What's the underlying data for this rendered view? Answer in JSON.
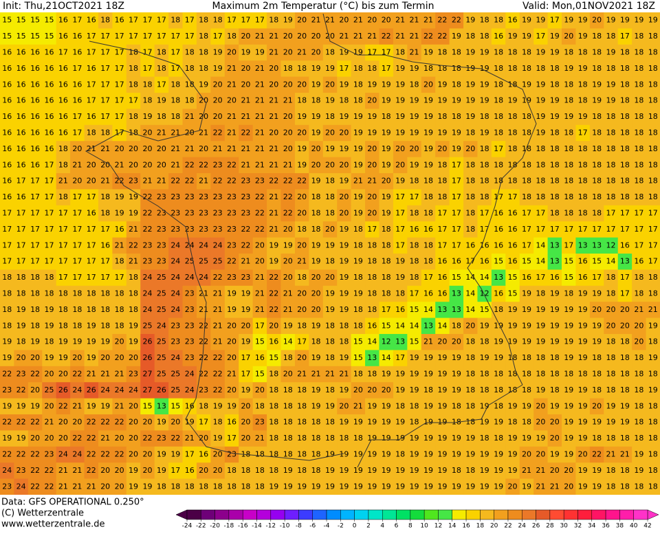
{
  "header": {
    "init": "Init: Thu,21OCT2021 18Z",
    "title": "Maximum 2m Temperatur (°C) bis zum Termin",
    "valid": "Valid: Mon,01NOV2021 18Z"
  },
  "footer": {
    "data": "Data: GFS OPERATIONAL 0.250°",
    "copyright": "(C) Wetterzentrale",
    "url": "www.wetterzentrale.de"
  },
  "map": {
    "grid": [
      [
        15,
        15,
        15,
        15,
        16,
        17,
        16,
        18,
        16,
        17,
        17,
        17,
        18,
        17,
        18,
        18,
        17,
        17,
        17,
        18,
        19,
        20,
        21,
        21,
        20,
        21,
        20,
        20,
        21,
        21,
        21,
        22,
        22,
        19,
        18,
        18,
        16,
        19,
        19,
        17,
        19,
        19,
        20,
        19,
        19,
        19,
        19
      ],
      [
        15,
        15,
        15,
        15,
        16,
        16,
        17,
        17,
        17,
        17,
        17,
        17,
        17,
        17,
        18,
        17,
        18,
        20,
        21,
        21,
        20,
        20,
        20,
        20,
        21,
        21,
        21,
        22,
        21,
        21,
        22,
        22,
        19,
        18,
        18,
        16,
        19,
        19,
        17,
        19,
        20,
        19,
        18,
        18,
        17,
        18,
        18
      ],
      [
        16,
        16,
        16,
        16,
        17,
        16,
        17,
        17,
        17,
        18,
        17,
        18,
        17,
        18,
        18,
        19,
        20,
        19,
        19,
        21,
        20,
        21,
        20,
        18,
        19,
        19,
        17,
        17,
        18,
        21,
        19,
        18,
        18,
        19,
        19,
        18,
        18,
        18,
        19,
        19,
        18,
        18,
        18,
        19,
        18,
        18,
        18
      ],
      [
        16,
        16,
        16,
        16,
        16,
        17,
        16,
        17,
        17,
        18,
        17,
        18,
        17,
        18,
        18,
        19,
        21,
        20,
        21,
        20,
        18,
        18,
        19,
        19,
        17,
        18,
        18,
        17,
        19,
        19,
        18,
        18,
        18,
        19,
        19,
        18,
        18,
        18,
        18,
        18,
        19,
        19,
        18,
        18,
        18,
        18,
        18
      ],
      [
        16,
        16,
        16,
        16,
        16,
        16,
        17,
        17,
        17,
        18,
        18,
        17,
        18,
        18,
        19,
        20,
        21,
        20,
        21,
        20,
        20,
        20,
        19,
        20,
        19,
        18,
        19,
        19,
        19,
        18,
        20,
        19,
        18,
        19,
        19,
        18,
        18,
        19,
        19,
        18,
        18,
        18,
        19,
        19,
        18,
        18,
        18
      ],
      [
        16,
        16,
        16,
        16,
        16,
        16,
        17,
        17,
        17,
        17,
        18,
        19,
        18,
        18,
        20,
        20,
        20,
        21,
        21,
        21,
        21,
        18,
        18,
        19,
        18,
        18,
        20,
        19,
        19,
        19,
        19,
        19,
        19,
        19,
        19,
        18,
        19,
        19,
        19,
        19,
        18,
        18,
        19,
        19,
        18,
        18,
        18
      ],
      [
        16,
        16,
        16,
        16,
        16,
        17,
        16,
        17,
        17,
        18,
        19,
        18,
        18,
        21,
        20,
        20,
        21,
        21,
        21,
        21,
        20,
        19,
        19,
        18,
        19,
        19,
        19,
        18,
        19,
        19,
        19,
        18,
        18,
        19,
        18,
        18,
        18,
        18,
        19,
        19,
        19,
        19,
        18,
        18,
        18,
        18,
        18
      ],
      [
        16,
        16,
        16,
        16,
        16,
        17,
        18,
        18,
        17,
        18,
        20,
        21,
        21,
        20,
        21,
        22,
        21,
        22,
        21,
        20,
        20,
        20,
        19,
        20,
        20,
        19,
        19,
        19,
        19,
        19,
        19,
        19,
        19,
        18,
        19,
        18,
        18,
        18,
        19,
        18,
        18,
        17,
        18,
        18,
        18,
        18,
        18
      ],
      [
        16,
        16,
        16,
        16,
        18,
        20,
        21,
        21,
        20,
        20,
        20,
        20,
        21,
        21,
        20,
        21,
        21,
        21,
        21,
        21,
        20,
        19,
        20,
        19,
        19,
        19,
        20,
        19,
        20,
        20,
        19,
        20,
        19,
        20,
        18,
        17,
        18,
        18,
        18,
        18,
        18,
        18,
        18,
        18,
        18,
        18,
        18
      ],
      [
        16,
        16,
        16,
        17,
        18,
        21,
        20,
        20,
        21,
        20,
        20,
        20,
        21,
        22,
        22,
        23,
        22,
        21,
        21,
        21,
        21,
        19,
        20,
        20,
        20,
        19,
        20,
        19,
        20,
        19,
        19,
        18,
        17,
        18,
        18,
        18,
        18,
        18,
        18,
        18,
        18,
        18,
        18,
        18,
        18,
        18,
        18
      ],
      [
        16,
        17,
        17,
        17,
        21,
        20,
        20,
        21,
        22,
        23,
        21,
        21,
        22,
        22,
        21,
        22,
        22,
        23,
        23,
        22,
        22,
        22,
        19,
        18,
        19,
        21,
        21,
        20,
        19,
        18,
        18,
        18,
        17,
        18,
        18,
        18,
        18,
        18,
        18,
        18,
        18,
        18,
        18,
        18,
        18,
        18,
        18
      ],
      [
        16,
        16,
        17,
        17,
        18,
        17,
        17,
        18,
        19,
        19,
        22,
        23,
        23,
        23,
        23,
        23,
        23,
        23,
        22,
        21,
        22,
        20,
        18,
        18,
        20,
        19,
        20,
        19,
        17,
        17,
        18,
        18,
        17,
        18,
        18,
        17,
        17,
        18,
        18,
        18,
        18,
        18,
        18,
        18,
        18,
        18,
        18
      ],
      [
        17,
        17,
        17,
        17,
        17,
        17,
        16,
        18,
        19,
        19,
        22,
        23,
        23,
        23,
        23,
        23,
        23,
        23,
        22,
        21,
        22,
        20,
        18,
        18,
        20,
        19,
        20,
        19,
        17,
        18,
        18,
        17,
        17,
        18,
        17,
        16,
        16,
        17,
        17,
        18,
        18,
        18,
        18,
        17,
        17,
        17,
        17
      ],
      [
        17,
        17,
        17,
        17,
        17,
        17,
        17,
        17,
        16,
        21,
        22,
        23,
        23,
        23,
        23,
        23,
        23,
        22,
        22,
        21,
        20,
        18,
        18,
        20,
        19,
        18,
        17,
        18,
        17,
        16,
        16,
        17,
        17,
        18,
        17,
        16,
        16,
        17,
        17,
        17,
        17,
        17,
        17,
        17,
        17,
        17,
        17
      ],
      [
        17,
        17,
        17,
        17,
        17,
        17,
        17,
        16,
        21,
        22,
        23,
        23,
        24,
        24,
        24,
        24,
        23,
        22,
        20,
        19,
        19,
        20,
        19,
        19,
        19,
        18,
        18,
        18,
        17,
        18,
        18,
        17,
        17,
        16,
        16,
        16,
        16,
        17,
        14,
        13,
        17,
        13,
        13,
        12,
        16,
        17,
        17
      ],
      [
        17,
        17,
        17,
        17,
        17,
        17,
        17,
        17,
        18,
        21,
        23,
        23,
        24,
        25,
        25,
        25,
        22,
        21,
        20,
        19,
        20,
        21,
        19,
        18,
        19,
        19,
        18,
        18,
        19,
        18,
        18,
        16,
        16,
        17,
        16,
        15,
        16,
        15,
        14,
        13,
        15,
        16,
        15,
        14,
        13,
        16,
        17
      ],
      [
        18,
        18,
        18,
        18,
        17,
        17,
        17,
        17,
        17,
        18,
        24,
        25,
        24,
        24,
        24,
        22,
        23,
        23,
        21,
        22,
        20,
        18,
        20,
        20,
        19,
        18,
        18,
        18,
        19,
        18,
        17,
        16,
        15,
        14,
        14,
        13,
        15,
        16,
        17,
        16,
        15,
        16,
        17,
        18,
        17,
        18,
        18
      ],
      [
        18,
        18,
        18,
        18,
        18,
        18,
        18,
        18,
        18,
        18,
        24,
        25,
        24,
        23,
        21,
        21,
        19,
        19,
        21,
        22,
        21,
        20,
        20,
        19,
        19,
        19,
        18,
        18,
        18,
        17,
        16,
        16,
        13,
        14,
        12,
        16,
        15,
        19,
        18,
        19,
        18,
        19,
        19,
        18,
        17,
        18,
        18
      ],
      [
        18,
        19,
        18,
        19,
        18,
        18,
        18,
        18,
        18,
        18,
        24,
        25,
        24,
        23,
        21,
        21,
        19,
        19,
        21,
        22,
        21,
        20,
        20,
        19,
        19,
        18,
        18,
        17,
        16,
        15,
        14,
        13,
        13,
        14,
        15,
        18,
        19,
        19,
        19,
        19,
        19,
        19,
        20,
        20,
        20,
        21,
        21
      ],
      [
        18,
        19,
        18,
        19,
        18,
        18,
        19,
        18,
        18,
        19,
        25,
        24,
        23,
        23,
        22,
        21,
        20,
        20,
        17,
        20,
        19,
        18,
        19,
        18,
        18,
        18,
        16,
        15,
        14,
        14,
        13,
        14,
        18,
        20,
        19,
        19,
        19,
        19,
        19,
        19,
        19,
        19,
        19,
        20,
        20,
        20,
        19
      ],
      [
        19,
        18,
        19,
        18,
        19,
        19,
        19,
        19,
        20,
        19,
        26,
        25,
        23,
        23,
        22,
        21,
        20,
        19,
        15,
        16,
        14,
        17,
        18,
        18,
        18,
        15,
        14,
        12,
        13,
        15,
        21,
        20,
        20,
        18,
        18,
        19,
        19,
        19,
        19,
        19,
        19,
        19,
        19,
        18,
        18,
        20,
        18
      ],
      [
        19,
        20,
        20,
        19,
        19,
        20,
        19,
        20,
        20,
        20,
        26,
        25,
        24,
        23,
        22,
        22,
        20,
        17,
        16,
        15,
        18,
        20,
        19,
        18,
        19,
        15,
        13,
        14,
        17,
        19,
        19,
        19,
        19,
        18,
        19,
        19,
        18,
        18,
        18,
        18,
        19,
        19,
        18,
        18,
        18,
        18,
        19
      ],
      [
        22,
        23,
        22,
        20,
        20,
        22,
        21,
        21,
        21,
        23,
        27,
        25,
        25,
        24,
        22,
        22,
        21,
        17,
        15,
        18,
        20,
        21,
        21,
        21,
        21,
        18,
        18,
        19,
        19,
        19,
        19,
        19,
        19,
        18,
        18,
        18,
        18,
        18,
        18,
        18,
        18,
        18,
        18,
        18,
        18,
        18,
        18
      ],
      [
        23,
        22,
        20,
        25,
        26,
        24,
        26,
        24,
        24,
        24,
        27,
        26,
        25,
        24,
        23,
        22,
        20,
        19,
        20,
        18,
        18,
        18,
        19,
        18,
        19,
        20,
        20,
        20,
        19,
        19,
        18,
        19,
        19,
        18,
        18,
        18,
        18,
        18,
        19,
        18,
        19,
        19,
        18,
        18,
        18,
        18,
        19
      ],
      [
        19,
        19,
        19,
        20,
        22,
        21,
        19,
        19,
        21,
        20,
        15,
        13,
        15,
        16,
        18,
        19,
        19,
        20,
        18,
        18,
        18,
        18,
        19,
        19,
        20,
        21,
        19,
        19,
        18,
        18,
        19,
        19,
        18,
        18,
        19,
        18,
        19,
        19,
        20,
        19,
        19,
        19,
        20,
        19,
        19,
        18,
        18
      ],
      [
        22,
        22,
        22,
        21,
        20,
        20,
        22,
        22,
        22,
        20,
        20,
        19,
        20,
        19,
        17,
        18,
        16,
        20,
        23,
        18,
        18,
        18,
        18,
        18,
        19,
        19,
        19,
        19,
        19,
        18,
        19,
        19,
        18,
        18,
        19,
        19,
        18,
        18,
        20,
        20,
        19,
        19,
        19,
        19,
        19,
        18,
        18
      ],
      [
        19,
        19,
        20,
        20,
        20,
        22,
        22,
        21,
        20,
        20,
        22,
        23,
        22,
        21,
        20,
        19,
        17,
        20,
        21,
        18,
        18,
        18,
        18,
        18,
        18,
        18,
        19,
        19,
        19,
        19,
        19,
        19,
        19,
        19,
        18,
        18,
        19,
        19,
        19,
        20,
        19,
        19,
        18,
        18,
        18,
        18,
        18
      ],
      [
        22,
        22,
        22,
        23,
        24,
        24,
        22,
        22,
        22,
        20,
        20,
        19,
        19,
        17,
        16,
        20,
        23,
        18,
        18,
        18,
        18,
        18,
        18,
        19,
        19,
        19,
        19,
        19,
        18,
        19,
        19,
        19,
        19,
        19,
        19,
        19,
        19,
        20,
        20,
        19,
        19,
        20,
        22,
        21,
        21,
        19,
        18
      ],
      [
        24,
        23,
        22,
        22,
        21,
        21,
        22,
        20,
        20,
        19,
        20,
        19,
        17,
        16,
        20,
        20,
        18,
        18,
        18,
        18,
        19,
        18,
        18,
        19,
        19,
        19,
        19,
        19,
        19,
        19,
        19,
        19,
        18,
        18,
        19,
        19,
        19,
        21,
        21,
        20,
        20,
        19,
        19,
        18,
        18,
        19,
        18
      ],
      [
        23,
        24,
        22,
        22,
        21,
        21,
        21,
        20,
        20,
        19,
        19,
        18,
        18,
        18,
        18,
        18,
        18,
        18,
        18,
        19,
        19,
        19,
        19,
        19,
        19,
        19,
        19,
        19,
        19,
        19,
        19,
        19,
        19,
        19,
        19,
        19,
        20,
        19,
        21,
        21,
        20,
        19,
        19,
        18,
        18,
        18,
        18
      ]
    ]
  },
  "colorbar": {
    "ticks": [
      -24,
      -22,
      -20,
      -18,
      -16,
      -14,
      -12,
      -10,
      -8,
      -6,
      -4,
      -2,
      0,
      2,
      4,
      6,
      8,
      10,
      12,
      14,
      16,
      18,
      20,
      22,
      24,
      26,
      28,
      30,
      32,
      34,
      36,
      38,
      40,
      42
    ],
    "colors": [
      "#4b0046",
      "#6e0078",
      "#8c008c",
      "#aa00aa",
      "#c800c8",
      "#b400dc",
      "#9600f0",
      "#6e1eff",
      "#3c3cff",
      "#1e64ff",
      "#008cff",
      "#00b4ff",
      "#00d2f0",
      "#00e6c8",
      "#00e696",
      "#00e164",
      "#14dc3c",
      "#50e61e",
      "#46e646",
      "#f5eb00",
      "#fad200",
      "#f5b91e",
      "#f2a01e",
      "#ee8c1e",
      "#eb7828",
      "#e65a28",
      "#ff4b32",
      "#ff3232",
      "#ff1e3c",
      "#ff1464",
      "#ff148c",
      "#ff1eaa",
      "#ff32c8"
    ]
  }
}
